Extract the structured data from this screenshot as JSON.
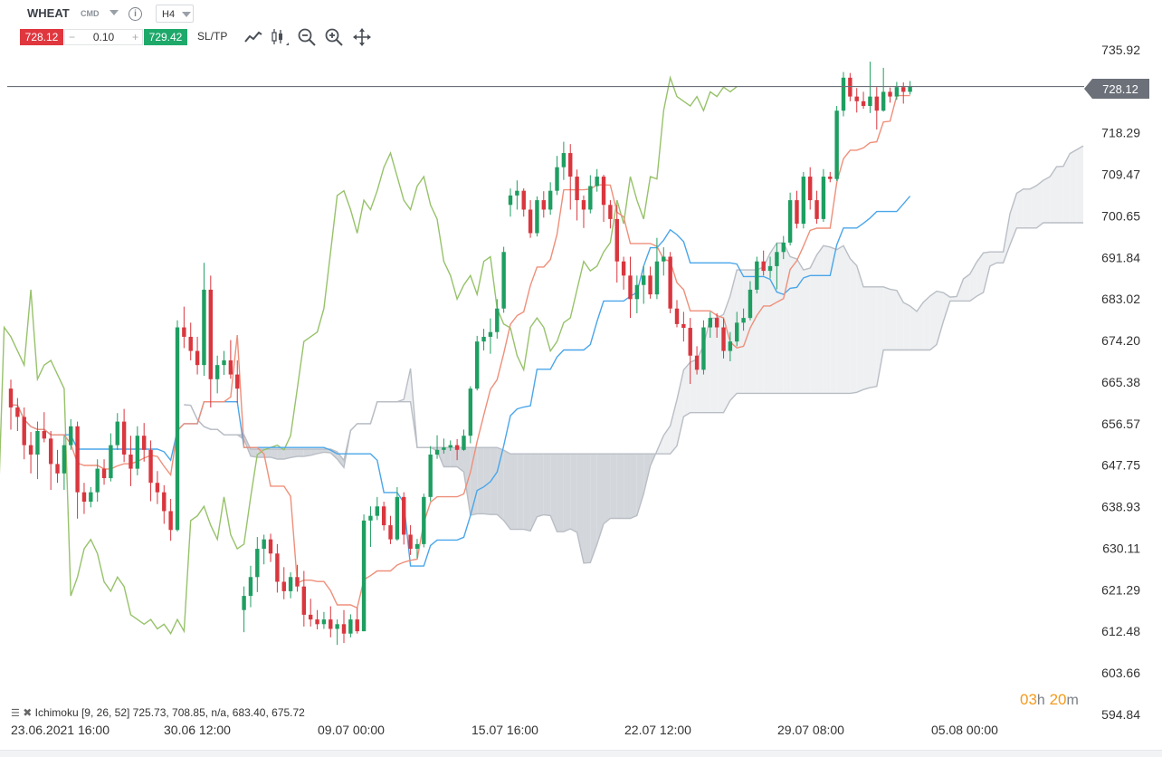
{
  "header": {
    "symbol": "WHEAT",
    "market": "CMD",
    "info_icon": "info-icon",
    "timeframe": "H4",
    "sell_price": "728.12",
    "volume": "0.10",
    "minus": "−",
    "plus": "+",
    "buy_price": "729.42",
    "sltp": "SL/TP",
    "icons": [
      "line-chart-icon",
      "candles-icon",
      "zoom-out-icon",
      "zoom-in-icon",
      "move-icon"
    ]
  },
  "current_price_label": "728.12",
  "indicator": {
    "icons": [
      "list-icon",
      "close-icon"
    ],
    "text": "Ichimoku [9, 26, 52] 725.73, 708.85, n/a, 683.40, 675.72"
  },
  "timer": {
    "hours": "03",
    "h": "h",
    "minutes": "20",
    "m": "m"
  },
  "colors": {
    "up": "#1e9e61",
    "down": "#d9363e",
    "tenkan": "#ef8f7a",
    "kijun": "#4aa6ea",
    "chikou": "#97c26a",
    "span": "#b9bec5",
    "cloud_bear": "#d3d7dc",
    "cloud_bull": "#eef0f2",
    "price_line": "#6b7079"
  },
  "chart_data": {
    "type": "candlestick",
    "symbol": "WHEAT",
    "timeframe": "H4",
    "y_ticks": [
      "735.92",
      "718.29",
      "709.47",
      "700.65",
      "691.84",
      "683.02",
      "674.20",
      "665.38",
      "656.57",
      "647.75",
      "638.93",
      "630.11",
      "621.29",
      "612.48",
      "603.66",
      "594.84"
    ],
    "ylim": [
      594.84,
      735.92
    ],
    "x_ticks": [
      "23.06.2021 16:00",
      "30.06 12:00",
      "09.07 00:00",
      "15.07 16:00",
      "22.07 12:00",
      "29.07 08:00",
      "05.08 00:00"
    ],
    "current_price": 728.12,
    "ohlc": [
      [
        664.0,
        665.9,
        655.3,
        660.0
      ],
      [
        660.0,
        662.0,
        655.0,
        658.0
      ],
      [
        658.0,
        660.0,
        649.0,
        652.0
      ],
      [
        652.0,
        654.8,
        646.0,
        650.0
      ],
      [
        650.0,
        657.0,
        644.8,
        655.0
      ],
      [
        655.0,
        659.0,
        652.6,
        653.4
      ],
      [
        653.4,
        655.0,
        642.5,
        648.0
      ],
      [
        648.0,
        651.0,
        644.0,
        646.0
      ],
      [
        646.0,
        654.0,
        642.5,
        652.0
      ],
      [
        652.0,
        657.5,
        651.0,
        656.0
      ],
      [
        656.0,
        657.0,
        636.4,
        642.0
      ],
      [
        642.0,
        644.0,
        637.4,
        640.0
      ],
      [
        640.0,
        643.1,
        638.8,
        642.0
      ],
      [
        642.0,
        649.0,
        640.0,
        647.0
      ],
      [
        647.0,
        649.0,
        643.6,
        645.0
      ],
      [
        645.0,
        654.5,
        644.3,
        652.0
      ],
      [
        652.0,
        658.8,
        651.0,
        657.0
      ],
      [
        657.0,
        659.7,
        648.4,
        650.0
      ],
      [
        650.0,
        654.0,
        643.3,
        647.0
      ],
      [
        647.0,
        656.0,
        645.6,
        654.0
      ],
      [
        654.0,
        656.7,
        648.5,
        651.0
      ],
      [
        651.0,
        653.0,
        640.1,
        644.0
      ],
      [
        644.0,
        646.5,
        639.5,
        642.0
      ],
      [
        642.0,
        643.5,
        635.3,
        638.0
      ],
      [
        638.0,
        640.6,
        631.7,
        634.0
      ],
      [
        634.0,
        678.5,
        633.7,
        677.0
      ],
      [
        677.0,
        681.4,
        672.6,
        675.0
      ],
      [
        675.0,
        678.0,
        670.0,
        672.0
      ],
      [
        672.0,
        675.0,
        667.0,
        669.0
      ],
      [
        669.0,
        690.7,
        666.7,
        685.0
      ],
      [
        685.0,
        688.0,
        660.0,
        666.0
      ],
      [
        666.0,
        671.0,
        663.0,
        669.0
      ],
      [
        669.0,
        672.0,
        666.9,
        670.0
      ],
      [
        670.0,
        674.3,
        666.1,
        667.0
      ],
      [
        667.0,
        670.0,
        661.0,
        664.0
      ],
      [
        617.0,
        622.0,
        612.3,
        620.0
      ],
      [
        620.0,
        626.4,
        617.6,
        624.0
      ],
      [
        624.0,
        632.5,
        620.8,
        630.0
      ],
      [
        630.0,
        633.0,
        626.7,
        632.0
      ],
      [
        632.0,
        633.2,
        627.2,
        629.0
      ],
      [
        629.0,
        631.0,
        620.7,
        623.0
      ],
      [
        623.0,
        626.1,
        619.3,
        621.0
      ],
      [
        621.0,
        625.0,
        619.5,
        624.0
      ],
      [
        624.0,
        626.6,
        620.9,
        622.0
      ],
      [
        622.0,
        625.3,
        613.5,
        616.0
      ],
      [
        616.0,
        619.4,
        613.5,
        615.0
      ],
      [
        615.0,
        617.0,
        612.9,
        614.0
      ],
      [
        614.0,
        616.6,
        613.0,
        615.0
      ],
      [
        615.0,
        617.8,
        611.2,
        613.0
      ],
      [
        613.0,
        615.0,
        609.6,
        614.0
      ],
      [
        614.0,
        617.0,
        610.0,
        612.0
      ],
      [
        612.0,
        616.1,
        611.2,
        615.0
      ],
      [
        615.0,
        617.4,
        612.0,
        612.5
      ],
      [
        612.5,
        637.3,
        612.5,
        636.0
      ],
      [
        636.0,
        639.0,
        630.4,
        637.0
      ],
      [
        637.0,
        641.0,
        636.1,
        639.0
      ],
      [
        639.0,
        640.0,
        633.9,
        635.0
      ],
      [
        635.0,
        637.0,
        631.0,
        632.0
      ],
      [
        632.0,
        643.1,
        631.7,
        641.0
      ],
      [
        641.0,
        642.0,
        630.9,
        633.0
      ],
      [
        633.0,
        635.0,
        628.7,
        630.0
      ],
      [
        630.0,
        632.1,
        628.0,
        631.0
      ],
      [
        631.0,
        641.7,
        630.3,
        641.0
      ],
      [
        641.0,
        651.8,
        640.1,
        650.0
      ],
      [
        650.0,
        654.1,
        649.1,
        651.0
      ],
      [
        651.0,
        653.4,
        650.2,
        651.5
      ],
      [
        651.5,
        653.0,
        650.8,
        652.0
      ],
      [
        652.0,
        653.3,
        648.8,
        651.0
      ],
      [
        651.0,
        655.3,
        650.8,
        654.0
      ],
      [
        654.0,
        664.5,
        652.4,
        664.0
      ],
      [
        664.0,
        675.2,
        663.6,
        674.0
      ],
      [
        674.0,
        676.7,
        672.1,
        675.0
      ],
      [
        675.0,
        678.9,
        671.4,
        676.0
      ],
      [
        676.0,
        683.0,
        674.6,
        681.0
      ],
      [
        681.0,
        694.1,
        680.1,
        693.0
      ],
      [
        703.0,
        706.5,
        700.5,
        705.0
      ],
      [
        705.0,
        708.2,
        702.0,
        706.0
      ],
      [
        706.0,
        706.5,
        700.5,
        702.0
      ],
      [
        702.0,
        704.0,
        696.0,
        697.0
      ],
      [
        697.0,
        704.8,
        696.3,
        704.0
      ],
      [
        704.0,
        705.9,
        700.3,
        702.0
      ],
      [
        702.0,
        707.8,
        700.9,
        706.0
      ],
      [
        706.0,
        713.4,
        705.1,
        711.0
      ],
      [
        711.0,
        716.4,
        708.3,
        714.0
      ],
      [
        714.0,
        715.9,
        702.0,
        709.0
      ],
      [
        709.0,
        710.5,
        699.7,
        704.0
      ],
      [
        704.0,
        705.0,
        698.1,
        702.0
      ],
      [
        702.0,
        709.3,
        701.2,
        707.0
      ],
      [
        707.0,
        710.6,
        705.8,
        709.0
      ],
      [
        709.0,
        709.4,
        699.4,
        703.0
      ],
      [
        703.0,
        704.0,
        698.0,
        700.0
      ],
      [
        700.0,
        703.0,
        686.5,
        691.0
      ],
      [
        691.0,
        692.0,
        685.0,
        688.0
      ],
      [
        688.0,
        692.0,
        679.0,
        683.0
      ],
      [
        683.0,
        688.0,
        680.0,
        686.0
      ],
      [
        686.0,
        690.0,
        682.0,
        688.0
      ],
      [
        688.0,
        689.9,
        683.1,
        684.0
      ],
      [
        684.0,
        696.0,
        683.0,
        691.0
      ],
      [
        691.0,
        694.0,
        688.0,
        692.0
      ],
      [
        692.0,
        693.0,
        680.0,
        681.0
      ],
      [
        681.0,
        682.8,
        677.0,
        677.7
      ],
      [
        677.7,
        680.3,
        674.0,
        676.9
      ],
      [
        676.9,
        679.0,
        665.0,
        671.0
      ],
      [
        671.0,
        673.0,
        667.0,
        668.0
      ],
      [
        668.0,
        678.5,
        667.0,
        677.0
      ],
      [
        677.0,
        680.3,
        674.8,
        679.0
      ],
      [
        679.0,
        680.0,
        674.8,
        677.0
      ],
      [
        677.0,
        678.9,
        670.4,
        672.0
      ],
      [
        672.0,
        676.0,
        669.8,
        674.0
      ],
      [
        674.0,
        680.3,
        673.0,
        678.0
      ],
      [
        678.0,
        681.0,
        676.3,
        679.0
      ],
      [
        679.0,
        686.8,
        678.5,
        685.0
      ],
      [
        685.0,
        692.0,
        684.2,
        691.0
      ],
      [
        691.0,
        693.3,
        688.0,
        689.0
      ],
      [
        689.0,
        692.0,
        687.4,
        690.0
      ],
      [
        690.0,
        694.9,
        685.1,
        693.0
      ],
      [
        693.0,
        696.4,
        691.5,
        695.0
      ],
      [
        695.0,
        705.6,
        694.4,
        704.0
      ],
      [
        704.0,
        706.0,
        698.0,
        699.0
      ],
      [
        699.0,
        710.0,
        698.0,
        709.0
      ],
      [
        709.0,
        711.0,
        702.0,
        704.0
      ],
      [
        704.0,
        706.0,
        699.0,
        700.0
      ],
      [
        700.0,
        710.6,
        699.4,
        709.0
      ],
      [
        709.0,
        710.0,
        707.8,
        708.5
      ],
      [
        708.5,
        724.0,
        708.1,
        723.0
      ],
      [
        723.0,
        731.2,
        721.8,
        730.0
      ],
      [
        730.0,
        731.0,
        725.0,
        726.0
      ],
      [
        726.0,
        727.8,
        722.6,
        725.0
      ],
      [
        725.0,
        727.0,
        723.4,
        724.0
      ],
      [
        724.0,
        733.4,
        722.5,
        726.0
      ],
      [
        726.0,
        728.0,
        719.0,
        723.0
      ],
      [
        723.0,
        732.1,
        722.8,
        727.0
      ],
      [
        727.0,
        727.9,
        724.7,
        726.0
      ],
      [
        726.0,
        729.1,
        725.3,
        728.0
      ],
      [
        728.0,
        729.0,
        724.5,
        727.0
      ],
      [
        727.0,
        729.3,
        726.4,
        728.1
      ]
    ],
    "series": [
      {
        "name": "Tenkan-sen",
        "period": 9
      },
      {
        "name": "Kijun-sen",
        "period": 26
      },
      {
        "name": "Chikou Span",
        "shift": -26
      },
      {
        "name": "Senkou Span A",
        "shift": 26
      },
      {
        "name": "Senkou Span B",
        "period": 52,
        "shift": 26
      }
    ],
    "last_values": {
      "Tenkan-sen": 725.73,
      "Kijun-sen": 708.85,
      "Chikou Span": "n/a",
      "Senkou Span A": 683.4,
      "Senkou Span B": 675.72
    }
  }
}
